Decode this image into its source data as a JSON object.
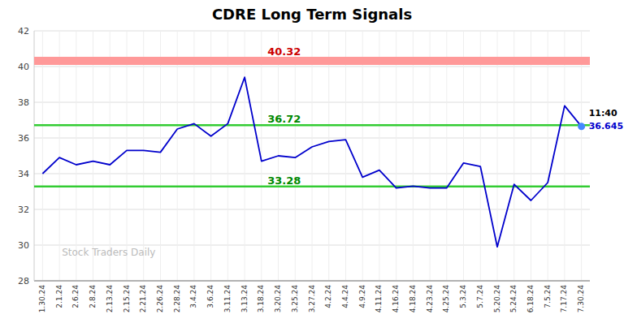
{
  "chart_data": {
    "type": "line",
    "title": "CDRE Long Term Signals",
    "categories": [
      "1.30.24",
      "2.1.24",
      "2.6.24",
      "2.8.24",
      "2.13.24",
      "2.15.24",
      "2.21.24",
      "2.26.24",
      "2.28.24",
      "3.4.24",
      "3.6.24",
      "3.11.24",
      "3.13.24",
      "3.18.24",
      "3.20.24",
      "3.25.24",
      "3.27.24",
      "4.2.24",
      "4.4.24",
      "4.9.24",
      "4.11.24",
      "4.16.24",
      "4.18.24",
      "4.23.24",
      "4.25.24",
      "5.3.24",
      "5.7.24",
      "5.20.24",
      "5.24.24",
      "6.18.24",
      "7.5.24",
      "7.17.24",
      "7.30.24"
    ],
    "values": [
      34.0,
      34.9,
      34.5,
      34.7,
      34.5,
      35.3,
      35.3,
      35.2,
      36.5,
      36.8,
      36.1,
      36.8,
      39.4,
      34.7,
      35.0,
      34.9,
      35.5,
      35.8,
      35.9,
      33.8,
      34.2,
      33.2,
      33.3,
      33.2,
      33.2,
      34.6,
      34.4,
      29.9,
      33.4,
      32.5,
      33.5,
      37.8,
      36.645
    ],
    "color": "#0000cc",
    "last_marker_color": "#4488ff",
    "reference_lines": [
      {
        "value": 40.32,
        "color": "#ff9999",
        "label_color": "#cc0000"
      },
      {
        "value": 36.72,
        "color": "#33cc33",
        "label_color": "#008800"
      },
      {
        "value": 33.28,
        "color": "#33cc33",
        "label_color": "#008800"
      }
    ],
    "annotations": [
      {
        "text": "11:40"
      }
    ],
    "watermark": "Stock Traders Daily",
    "ylim": [
      28,
      42
    ],
    "yticks": [
      28,
      30,
      32,
      34,
      36,
      38,
      40,
      42
    ],
    "grid": true
  }
}
